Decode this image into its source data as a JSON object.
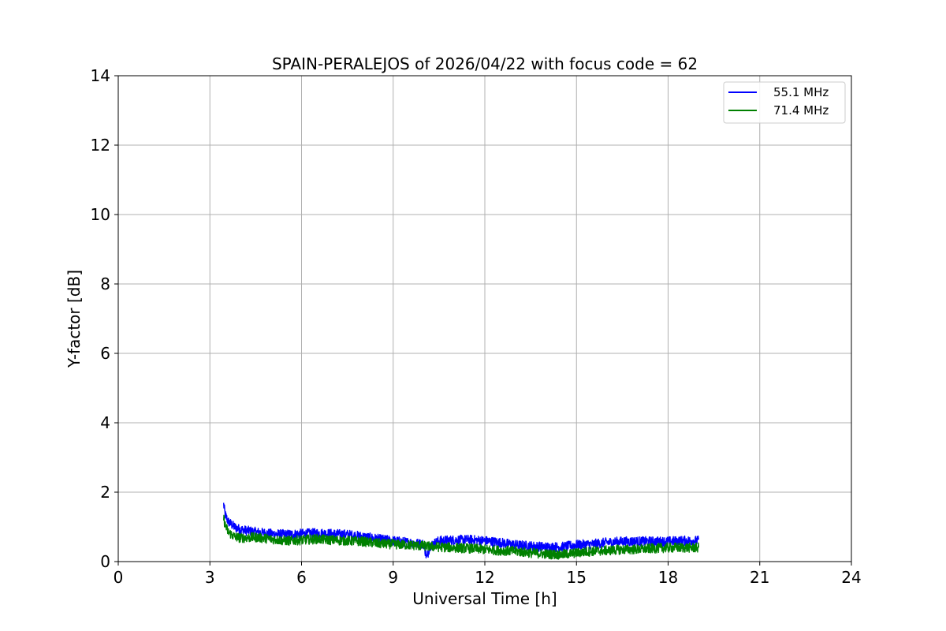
{
  "chart_data": {
    "type": "line",
    "title": "SPAIN-PERALEJOS of 2026/04/22 with focus code = 62",
    "xlabel": "Universal Time [h]",
    "ylabel": "Y-factor [dB]",
    "xlim": [
      0,
      24
    ],
    "ylim": [
      0,
      14
    ],
    "xticks": [
      0,
      3,
      6,
      9,
      12,
      15,
      18,
      21,
      24
    ],
    "yticks": [
      0,
      2,
      4,
      6,
      8,
      10,
      12,
      14
    ],
    "grid": true,
    "legend_position": "top-right",
    "series": [
      {
        "name": "55.1 MHz",
        "color": "#0000ff",
        "x": [
          3.45,
          3.5,
          3.6,
          3.8,
          4.0,
          4.5,
          5.0,
          5.5,
          6.0,
          6.5,
          7.0,
          7.5,
          8.0,
          8.5,
          9.0,
          9.5,
          10.0,
          10.1,
          10.2,
          10.5,
          11.0,
          11.5,
          12.0,
          12.5,
          13.0,
          13.5,
          14.0,
          14.5,
          15.0,
          15.5,
          16.0,
          16.5,
          17.0,
          17.5,
          18.0,
          18.5,
          19.0
        ],
        "y": [
          1.65,
          1.35,
          1.15,
          1.0,
          0.92,
          0.85,
          0.8,
          0.78,
          0.8,
          0.82,
          0.8,
          0.78,
          0.72,
          0.65,
          0.6,
          0.55,
          0.5,
          0.1,
          0.45,
          0.6,
          0.62,
          0.63,
          0.6,
          0.55,
          0.48,
          0.45,
          0.42,
          0.42,
          0.48,
          0.5,
          0.55,
          0.58,
          0.58,
          0.58,
          0.58,
          0.6,
          0.6
        ]
      },
      {
        "name": "71.4 MHz",
        "color": "#008000",
        "x": [
          3.45,
          3.5,
          3.6,
          3.8,
          4.0,
          4.5,
          5.0,
          5.5,
          6.0,
          6.5,
          7.0,
          7.5,
          8.0,
          8.5,
          9.0,
          9.5,
          10.0,
          10.5,
          11.0,
          11.5,
          12.0,
          12.5,
          13.0,
          13.5,
          14.0,
          14.5,
          15.0,
          15.5,
          16.0,
          16.5,
          17.0,
          17.5,
          18.0,
          18.5,
          19.0
        ],
        "y": [
          1.25,
          1.05,
          0.85,
          0.72,
          0.68,
          0.7,
          0.65,
          0.6,
          0.62,
          0.65,
          0.62,
          0.6,
          0.58,
          0.52,
          0.5,
          0.48,
          0.45,
          0.42,
          0.4,
          0.38,
          0.35,
          0.32,
          0.3,
          0.25,
          0.22,
          0.2,
          0.25,
          0.3,
          0.32,
          0.35,
          0.35,
          0.38,
          0.4,
          0.4,
          0.4
        ]
      }
    ]
  }
}
